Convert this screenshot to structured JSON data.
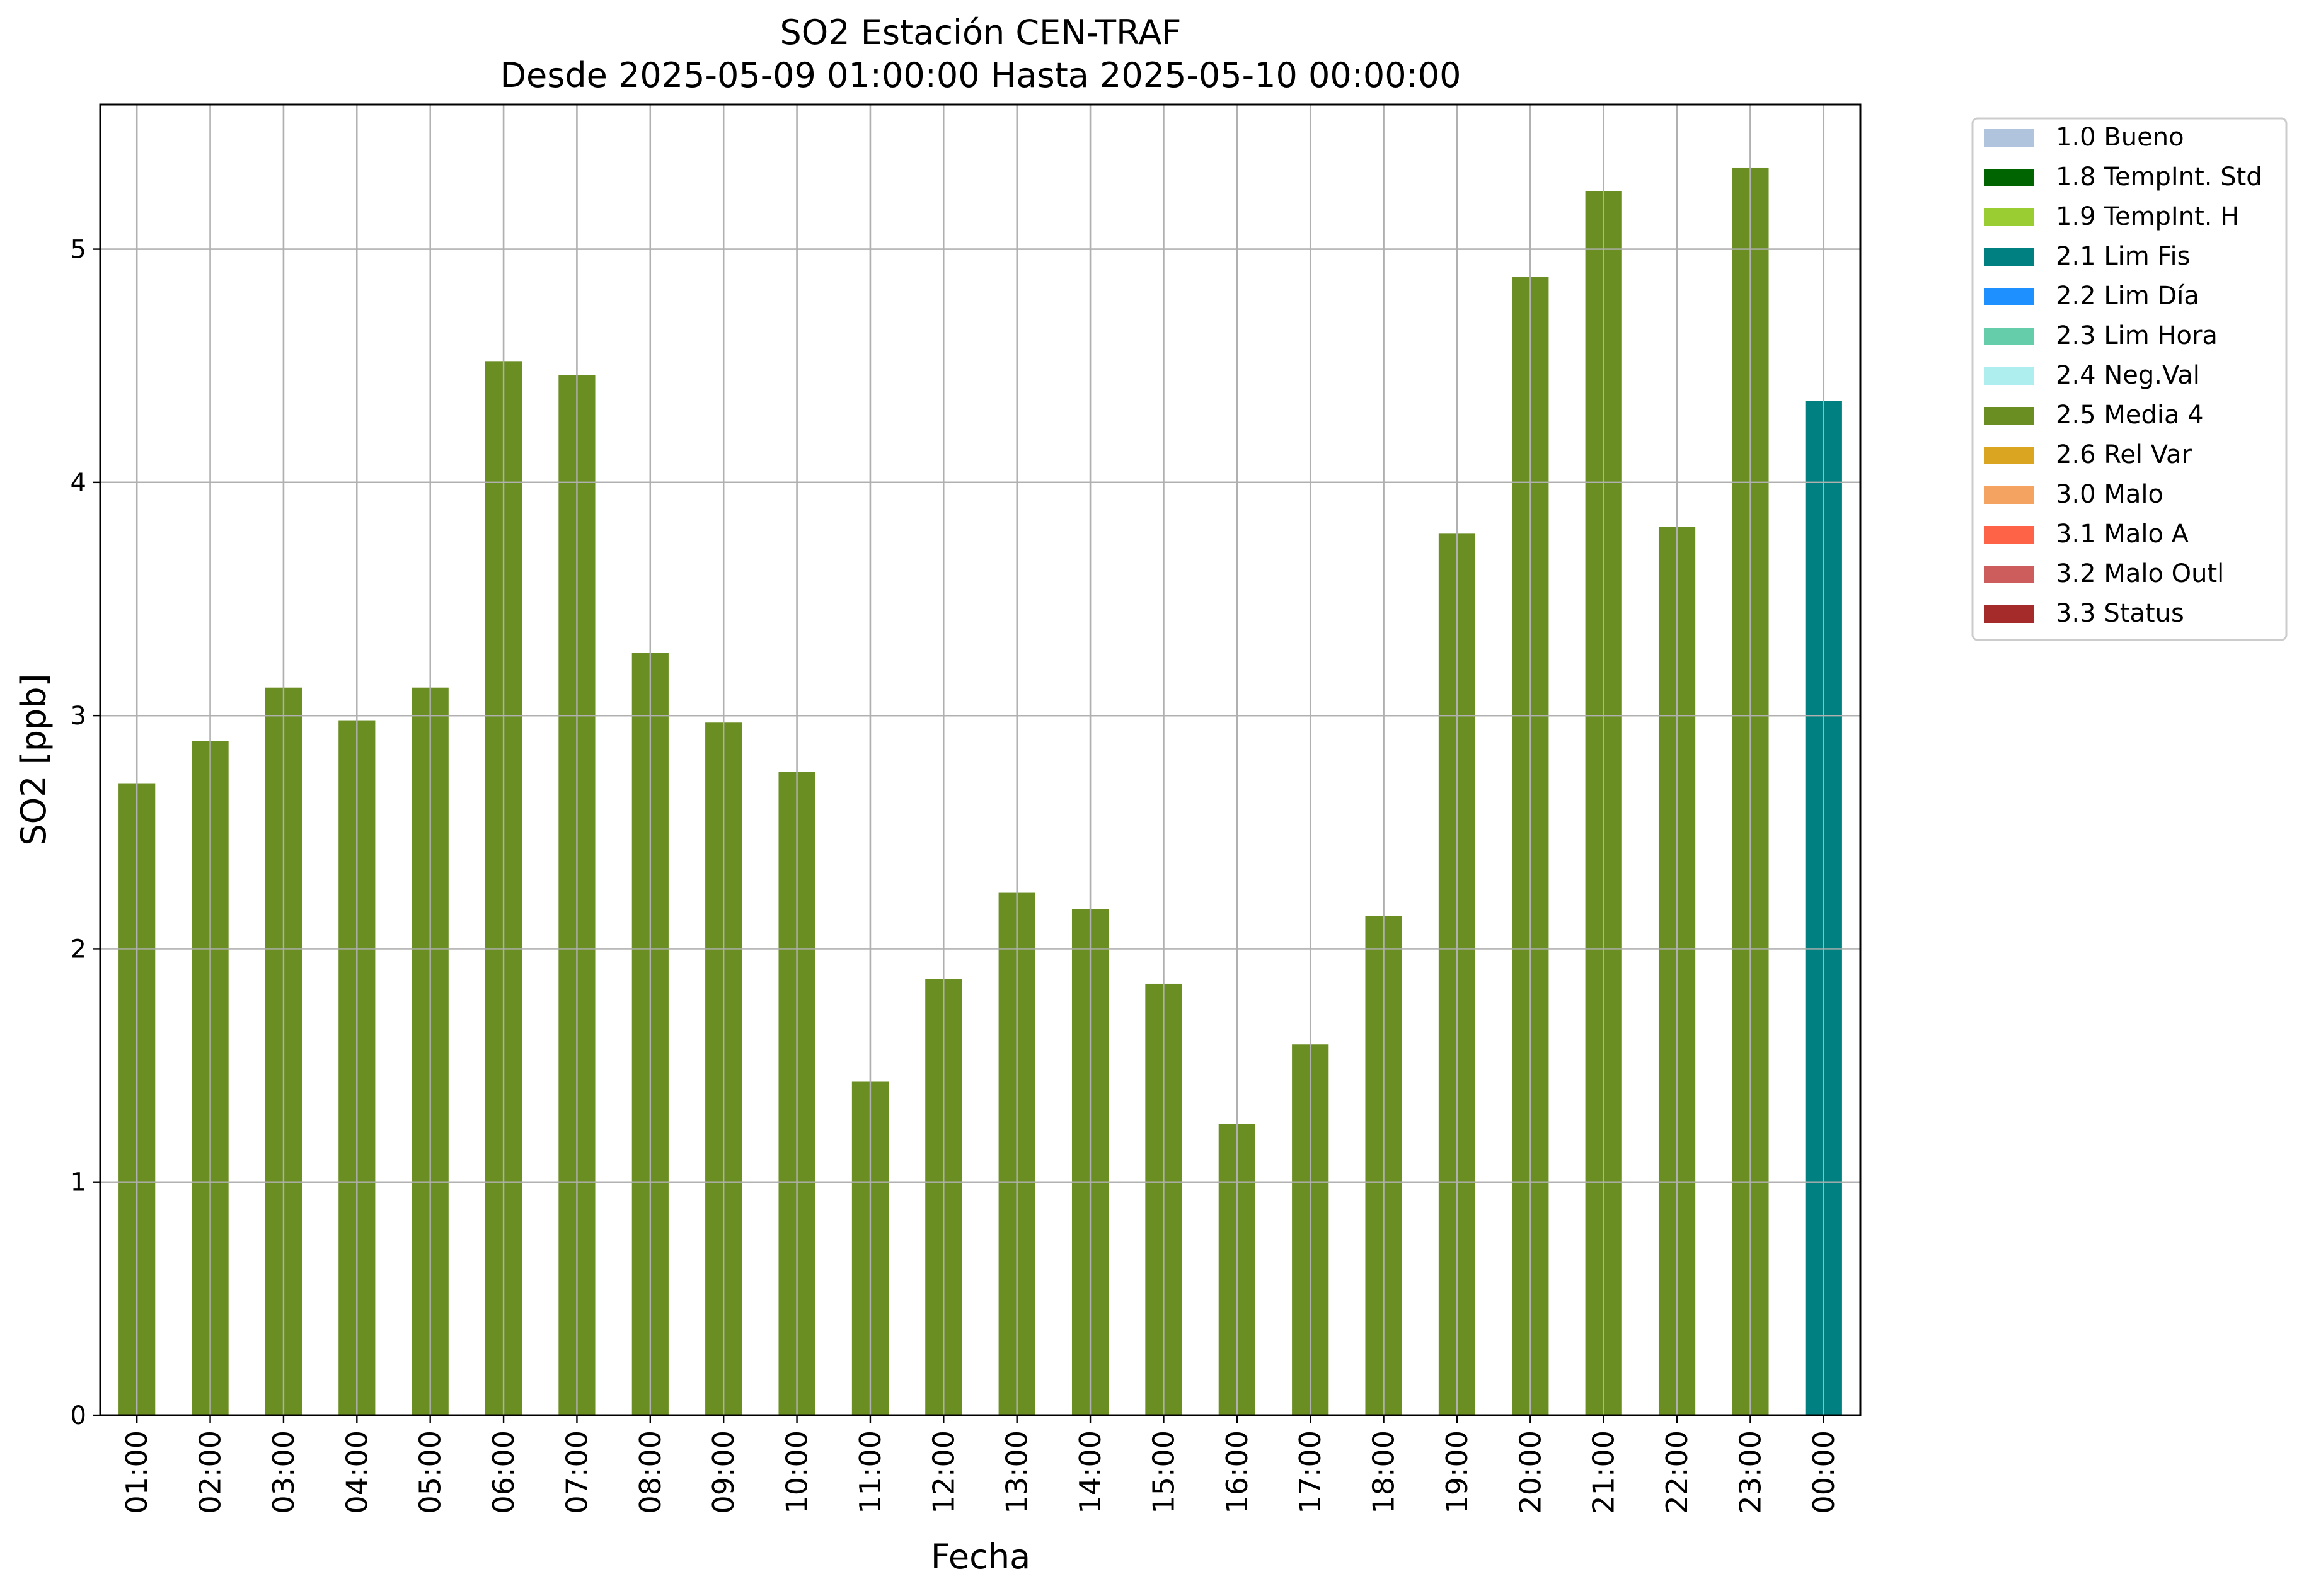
{
  "chart_data": {
    "type": "bar",
    "title": "SO2 Estación CEN-TRAF",
    "subtitle": "Desde 2025-05-09 01:00:00 Hasta 2025-05-10 00:00:00",
    "xlabel": "Fecha",
    "ylabel": "SO2 [ppb]",
    "ylim": [
      0,
      5.62
    ],
    "yticks": [
      0,
      1,
      2,
      3,
      4,
      5
    ],
    "grid": true,
    "legend_position": "outside-right-top",
    "categories": [
      "01:00",
      "02:00",
      "03:00",
      "04:00",
      "05:00",
      "06:00",
      "07:00",
      "08:00",
      "09:00",
      "10:00",
      "11:00",
      "12:00",
      "13:00",
      "14:00",
      "15:00",
      "16:00",
      "17:00",
      "18:00",
      "19:00",
      "20:00",
      "21:00",
      "22:00",
      "23:00",
      "00:00"
    ],
    "values": [
      2.71,
      2.89,
      3.12,
      2.98,
      3.12,
      4.52,
      4.46,
      3.27,
      2.97,
      2.76,
      1.43,
      1.87,
      2.24,
      2.17,
      1.85,
      1.25,
      1.59,
      2.14,
      3.78,
      4.88,
      5.25,
      3.81,
      5.35,
      4.35
    ],
    "flags": [
      "2.5 Media 4",
      "2.5 Media 4",
      "2.5 Media 4",
      "2.5 Media 4",
      "2.5 Media 4",
      "2.5 Media 4",
      "2.5 Media 4",
      "2.5 Media 4",
      "2.5 Media 4",
      "2.5 Media 4",
      "2.5 Media 4",
      "2.5 Media 4",
      "2.5 Media 4",
      "2.5 Media 4",
      "2.5 Media 4",
      "2.5 Media 4",
      "2.5 Media 4",
      "2.5 Media 4",
      "2.5 Media 4",
      "2.5 Media 4",
      "2.5 Media 4",
      "2.5 Media 4",
      "2.5 Media 4",
      "2.1 Lim Fis"
    ],
    "legend": [
      {
        "label": "1.0 Bueno",
        "color": "#b0c4de"
      },
      {
        "label": "1.8 TempInt. Std",
        "color": "#006400"
      },
      {
        "label": "1.9 TempInt. H",
        "color": "#9acd32"
      },
      {
        "label": "2.1 Lim Fis",
        "color": "#008080"
      },
      {
        "label": "2.2 Lim Día",
        "color": "#1e90ff"
      },
      {
        "label": "2.3 Lim Hora",
        "color": "#66cdaa"
      },
      {
        "label": "2.4 Neg.Val",
        "color": "#afeeee"
      },
      {
        "label": "2.5 Media 4",
        "color": "#6b8e23"
      },
      {
        "label": "2.6 Rel Var",
        "color": "#daa520"
      },
      {
        "label": "3.0 Malo",
        "color": "#f4a460"
      },
      {
        "label": "3.1 Malo A",
        "color": "#ff6347"
      },
      {
        "label": "3.2 Malo Outl",
        "color": "#cd5c5c"
      },
      {
        "label": "3.3 Status",
        "color": "#a52a2a"
      }
    ]
  }
}
